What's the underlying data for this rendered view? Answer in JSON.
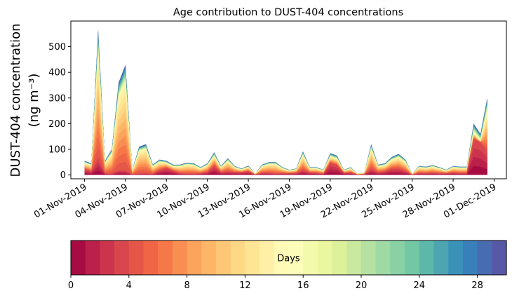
{
  "chart_data": {
    "type": "area",
    "title": "Age contribution to DUST-404 concentrations",
    "ylabel_line1": "DUST-404 concentration",
    "ylabel_line2": "(ng m⁻³)",
    "ylim": [
      -15,
      600
    ],
    "yticks": [
      0,
      100,
      200,
      300,
      400,
      500
    ],
    "xticks": [
      {
        "day": 1,
        "label": "01-Nov-2019"
      },
      {
        "day": 4,
        "label": "04-Nov-2019"
      },
      {
        "day": 7,
        "label": "07-Nov-2019"
      },
      {
        "day": 10,
        "label": "10-Nov-2019"
      },
      {
        "day": 13,
        "label": "13-Nov-2019"
      },
      {
        "day": 16,
        "label": "16-Nov-2019"
      },
      {
        "day": 19,
        "label": "19-Nov-2019"
      },
      {
        "day": 22,
        "label": "22-Nov-2019"
      },
      {
        "day": 25,
        "label": "25-Nov-2019"
      },
      {
        "day": 28,
        "label": "28-Nov-2019"
      },
      {
        "day": 31,
        "label": "01-Dec-2019"
      }
    ],
    "xlim": [
      0.0,
      31.9
    ],
    "x_days": [
      1.0,
      1.5,
      2.0,
      2.5,
      3.0,
      3.5,
      4.0,
      4.5,
      5.0,
      5.5,
      6.0,
      6.5,
      7.0,
      7.5,
      8.0,
      8.5,
      9.0,
      9.5,
      10.0,
      10.5,
      11.0,
      11.5,
      12.0,
      12.5,
      13.0,
      13.5,
      14.0,
      14.5,
      15.0,
      15.5,
      16.0,
      16.5,
      17.0,
      17.5,
      18.0,
      18.5,
      19.0,
      19.5,
      20.0,
      20.5,
      21.0,
      21.5,
      22.0,
      22.5,
      23.0,
      23.5,
      24.0,
      24.5,
      25.0,
      25.5,
      26.0,
      26.5,
      27.0,
      27.5,
      28.0,
      28.5,
      29.0,
      29.5,
      30.0,
      30.5
    ],
    "total": [
      55,
      45,
      570,
      55,
      100,
      360,
      430,
      20,
      110,
      120,
      40,
      60,
      55,
      40,
      40,
      48,
      45,
      30,
      45,
      88,
      35,
      65,
      35,
      25,
      36,
      5,
      40,
      50,
      50,
      30,
      20,
      25,
      92,
      30,
      30,
      20,
      85,
      75,
      20,
      30,
      5,
      10,
      120,
      40,
      45,
      70,
      82,
      60,
      5,
      35,
      32,
      38,
      30,
      20,
      35,
      32,
      32,
      200,
      160,
      300
    ],
    "young_fraction_4d": [
      0.4,
      0.3,
      0.12,
      0.1,
      0.05,
      0.05,
      0.04,
      0.1,
      0.05,
      0.05,
      0.1,
      0.3,
      0.5,
      0.4,
      0.15,
      0.1,
      0.1,
      0.2,
      0.25,
      0.4,
      0.3,
      0.2,
      0.3,
      0.4,
      0.4,
      0.3,
      0.2,
      0.15,
      0.1,
      0.2,
      0.3,
      0.3,
      0.2,
      0.3,
      0.25,
      0.2,
      0.55,
      0.5,
      0.4,
      0.3,
      0.3,
      0.3,
      0.2,
      0.25,
      0.3,
      0.35,
      0.3,
      0.25,
      0.3,
      0.2,
      0.2,
      0.2,
      0.2,
      0.3,
      0.25,
      0.2,
      0.2,
      0.7,
      0.8,
      0.3
    ],
    "colorbar": {
      "label": "Days",
      "range": [
        0,
        30
      ],
      "n_levels": 30,
      "ticks": [
        0,
        4,
        8,
        12,
        16,
        20,
        24,
        28
      ]
    },
    "palette": [
      "#9e0142",
      "#d53e4f",
      "#f46d43",
      "#fdae61",
      "#fee08b",
      "#ffffbf",
      "#e6f598",
      "#abdda4",
      "#66c2a5",
      "#3288bd",
      "#5e4fa2"
    ]
  }
}
